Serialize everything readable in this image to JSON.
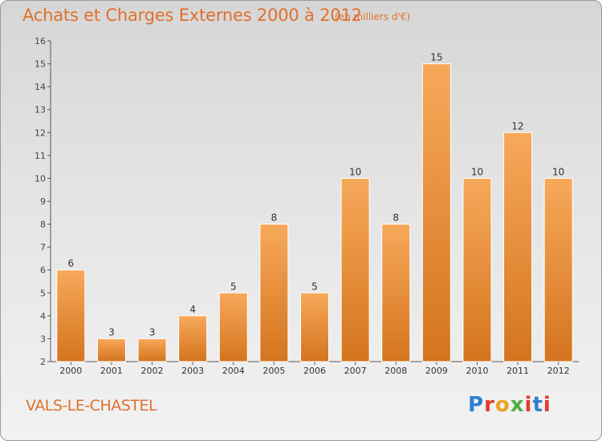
{
  "header": {
    "title": "Achats et Charges Externes 2000 à 2012",
    "subtitle": "(en milliers d'€)"
  },
  "footer": {
    "commune": "VALS-LE-CHASTEL",
    "logo": "Proxiti"
  },
  "colors": {
    "title": "#e0702c",
    "bar_light": "#f7a95a",
    "bar_dark": "#d4741e",
    "logo": [
      "#2f7fd0",
      "#e23b2e",
      "#f0a020",
      "#4fae3f",
      "#e23b2e",
      "#2f7fd0",
      "#e23b2e"
    ]
  },
  "chart_data": {
    "type": "bar",
    "categories": [
      "2000",
      "2001",
      "2002",
      "2003",
      "2004",
      "2005",
      "2006",
      "2007",
      "2008",
      "2009",
      "2010",
      "2011",
      "2012"
    ],
    "values": [
      6,
      3,
      3,
      4,
      5,
      8,
      5,
      10,
      8,
      15,
      10,
      12,
      10
    ],
    "title": "Achats et Charges Externes 2000 à 2012",
    "xlabel": "",
    "ylabel": "",
    "ylim": [
      2,
      16
    ],
    "yticks": [
      2,
      3,
      4,
      5,
      6,
      7,
      8,
      9,
      10,
      11,
      12,
      13,
      14,
      15,
      16
    ],
    "grid": false,
    "legend": "none"
  }
}
